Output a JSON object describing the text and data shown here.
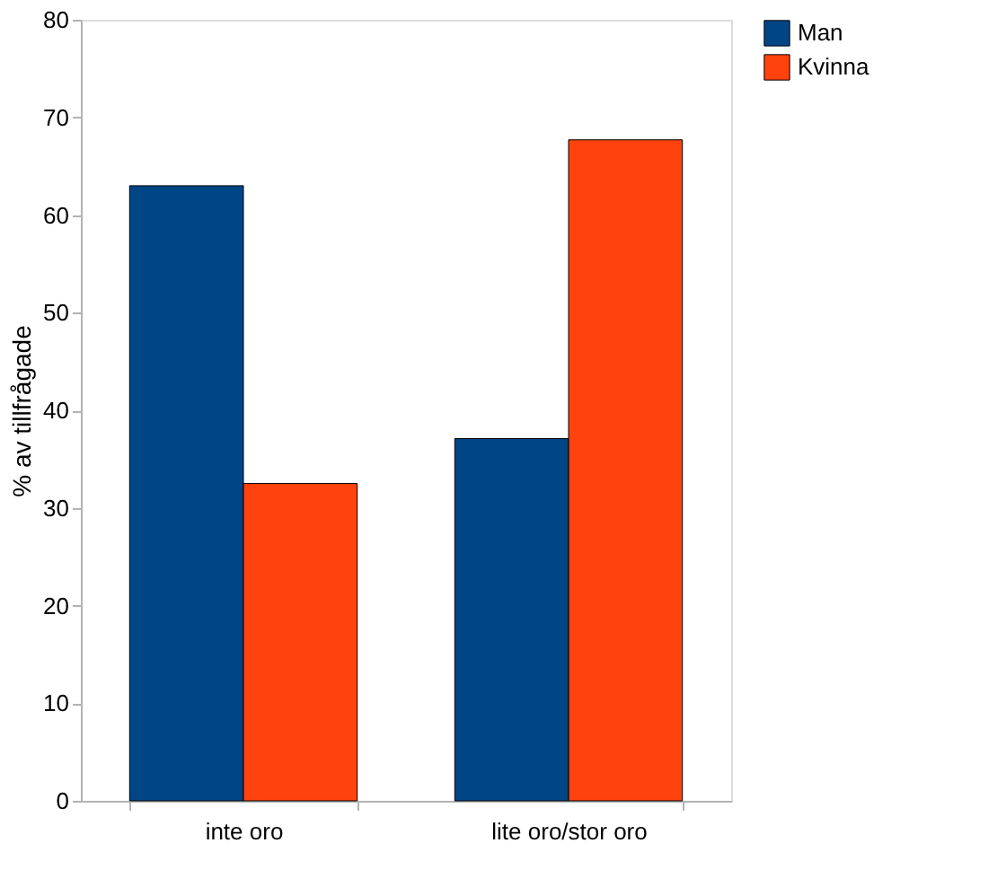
{
  "chart_data": {
    "type": "bar",
    "ylabel": "% av tillfrågade",
    "categories": [
      "inte oro",
      "lite oro/stor oro"
    ],
    "series": [
      {
        "name": "Man",
        "color": "#004586",
        "values": [
          63,
          37.1
        ]
      },
      {
        "name": "Kvinna",
        "color": "#ff420e",
        "values": [
          32.5,
          67.7
        ]
      }
    ],
    "ylim": [
      0,
      80
    ],
    "yticks": [
      0,
      10,
      20,
      30,
      40,
      50,
      60,
      70,
      80
    ],
    "grid": false,
    "legend": "right"
  }
}
